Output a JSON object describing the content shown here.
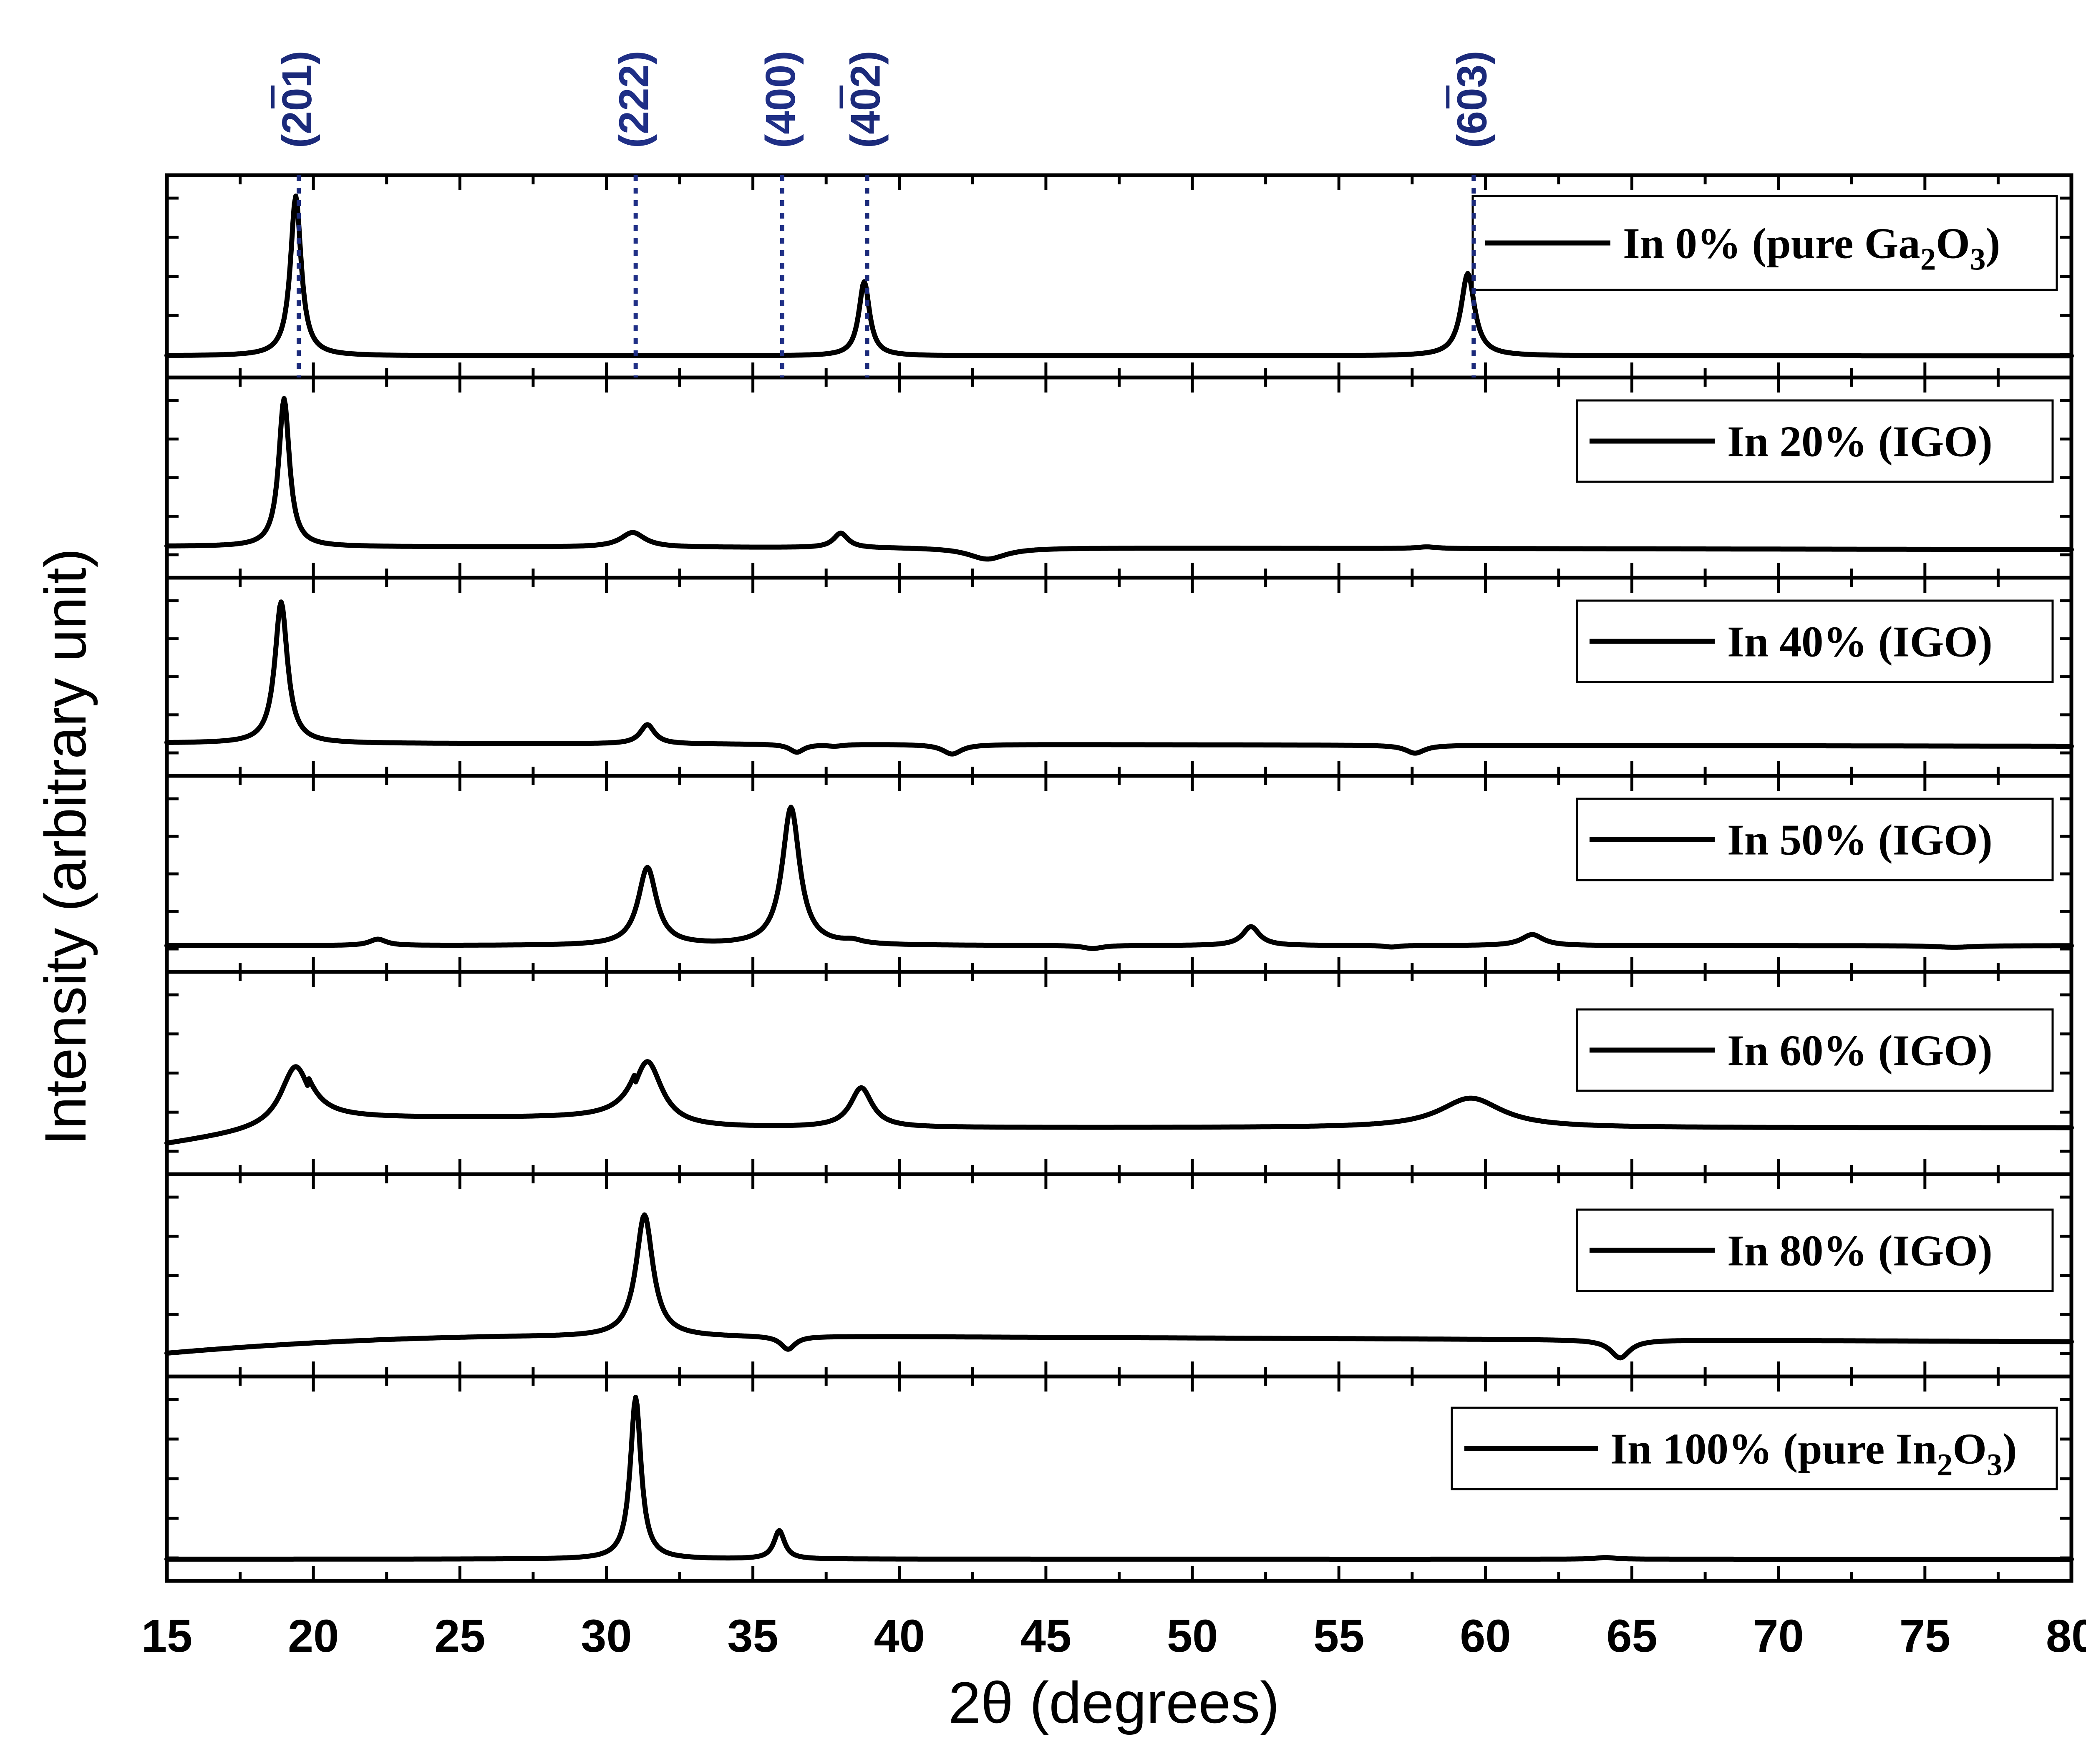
{
  "chart_data": {
    "type": "line",
    "layout": "stacked-panels",
    "xlabel": "2θ (degrees)",
    "ylabel": "Intensity (arbitrary unit)",
    "xlim": [
      15,
      80
    ],
    "x_ticks": [
      15,
      20,
      25,
      30,
      35,
      40,
      45,
      50,
      55,
      60,
      65,
      70,
      75,
      80
    ],
    "x_minor_step": 2.5,
    "grid": false,
    "legend_placement": "top-right of each panel",
    "colors": {
      "line": "#000000",
      "reference_dark": "#1b2a7a",
      "reference_blue": "#1f2f86"
    },
    "reference_lines": [
      {
        "position": 19.5,
        "label_main": "(201)",
        "bar_over": "2",
        "color": "#1b2a7a"
      },
      {
        "position": 31.0,
        "label_main": "(222)",
        "bar_over": "",
        "color": "#1f2f86"
      },
      {
        "position": 36.0,
        "label_main": "(400)",
        "bar_over": "",
        "color": "#1f2f86"
      },
      {
        "position": 38.9,
        "label_main": "(402)",
        "bar_over": "4",
        "color": "#1b2a7a"
      },
      {
        "position": 59.6,
        "label_main": "(603)",
        "bar_over": "6",
        "color": "#1b2a7a"
      }
    ],
    "series": [
      {
        "name": "In 0% (pure Ga2O3)",
        "legend_main": "In 0% (pure Ga",
        "legend_parts": [
          "2",
          "O",
          "3",
          ")"
        ],
        "baseline": 0.03,
        "slope": 0.0,
        "peaks": [
          [
            19.4,
            1.0,
            0.22
          ],
          [
            38.8,
            0.48,
            0.22
          ],
          [
            59.4,
            0.53,
            0.28
          ]
        ],
        "shoulders": []
      },
      {
        "name": "In 20% (IGO)",
        "legend_main": "In 20% (IGO)",
        "legend_parts": [],
        "baseline": 0.09,
        "slope": -0.0003,
        "peaks": [
          [
            19.0,
            1.0,
            0.22
          ],
          [
            30.9,
            0.18,
            0.5
          ],
          [
            38.0,
            0.18,
            0.3
          ],
          [
            43.0,
            0.02,
            0.8
          ],
          [
            58.0,
            0.1,
            0.4
          ]
        ],
        "shoulders": []
      },
      {
        "name": "In 40% (IGO)",
        "legend_main": "In 40% (IGO)",
        "legend_parts": [],
        "baseline": 0.1,
        "slope": -0.0003,
        "peaks": [
          [
            18.9,
            0.98,
            0.26
          ],
          [
            31.4,
            0.22,
            0.3
          ],
          [
            36.5,
            0.05,
            0.3
          ],
          [
            37.8,
            0.09,
            0.35
          ],
          [
            41.8,
            0.04,
            0.4
          ],
          [
            57.6,
            0.05,
            0.4
          ]
        ],
        "shoulders": []
      },
      {
        "name": "In 50% (IGO)",
        "legend_main": "In 50% (IGO)",
        "legend_parts": [],
        "baseline": 0.06,
        "slope": 0.0,
        "peaks": [
          [
            22.2,
            0.1,
            0.35
          ],
          [
            31.4,
            0.55,
            0.38
          ],
          [
            36.3,
            0.93,
            0.36
          ],
          [
            38.4,
            0.08,
            0.4
          ],
          [
            46.6,
            0.04,
            0.4
          ],
          [
            52.0,
            0.18,
            0.35
          ],
          [
            56.8,
            0.05,
            0.3
          ],
          [
            61.6,
            0.13,
            0.45
          ],
          [
            76.0,
            0.05,
            0.8
          ]
        ],
        "shoulders": []
      },
      {
        "name": "In 60% (IGO)",
        "legend_main": "In 60% (IGO)",
        "legend_parts": [],
        "baseline": 0.18,
        "slope": 0.0,
        "peaks": [
          [
            19.4,
            0.55,
            0.6
          ],
          [
            31.4,
            0.58,
            0.6
          ],
          [
            38.7,
            0.42,
            0.45
          ],
          [
            59.5,
            0.36,
            1.3
          ]
        ],
        "shoulders": []
      },
      {
        "name": "In 80% (IGO)",
        "legend_main": "In 80% (IGO)",
        "legend_parts": [],
        "baseline": 0.14,
        "slope": 0.0,
        "peaks": [
          [
            31.3,
            0.88,
            0.35
          ],
          [
            36.2,
            0.06,
            0.3
          ],
          [
            64.6,
            0.03,
            0.4
          ]
        ],
        "shoulders": []
      },
      {
        "name": "In 100% (pure In2O3)",
        "legend_main": "In 100% (pure In",
        "legend_parts": [
          "2",
          "O",
          "3",
          ")"
        ],
        "baseline": 0.03,
        "slope": 0.0,
        "peaks": [
          [
            31.0,
            1.0,
            0.22
          ],
          [
            35.9,
            0.2,
            0.22
          ],
          [
            64.1,
            0.04,
            0.4
          ]
        ],
        "shoulders": []
      }
    ]
  }
}
